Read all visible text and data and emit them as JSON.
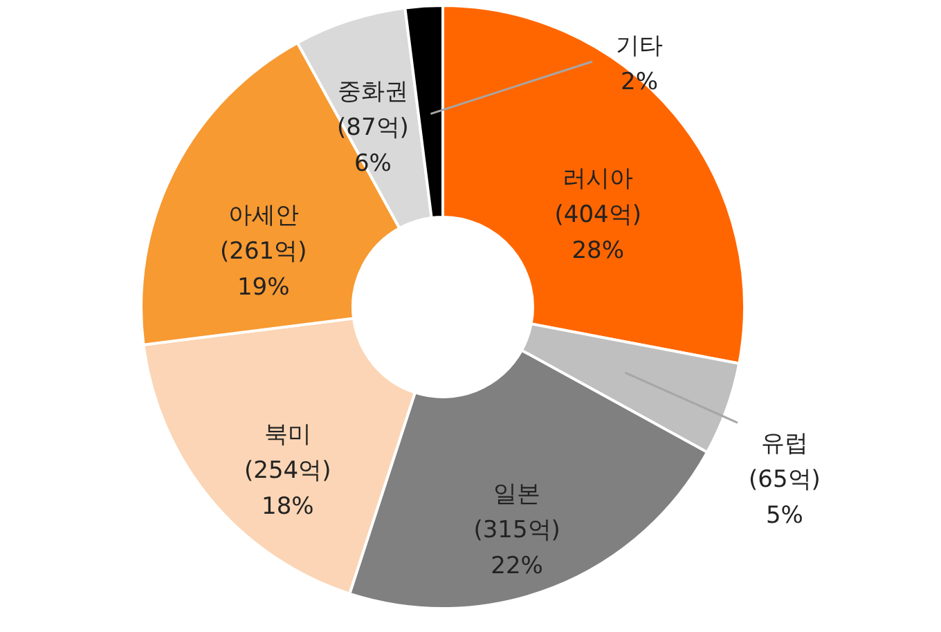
{
  "chart_data": {
    "type": "donut",
    "categories": [
      "러시아",
      "유럽",
      "일본",
      "북미",
      "아세안",
      "중화권",
      "기타"
    ],
    "values": [
      28,
      5,
      22,
      18,
      19,
      6,
      2
    ],
    "colors": [
      "#ff6600",
      "#bfbfbf",
      "#808080",
      "#fbd5b5",
      "#f79a32",
      "#d9d9d9",
      "#000000"
    ],
    "value_labels": [
      "(404억)\n28%",
      "(65억)\n5%",
      "(315억)\n22%",
      "(254억)\n18%",
      "(261억)\n19%",
      "(87억)\n6%",
      "2%"
    ]
  }
}
